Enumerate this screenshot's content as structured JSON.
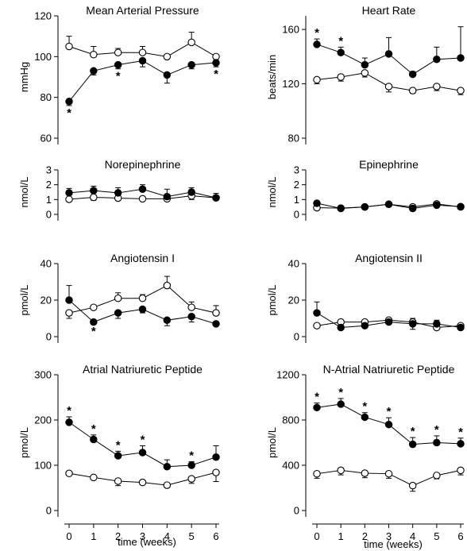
{
  "x_axis_label": "time (weeks)",
  "chart_data": [
    {
      "type": "line",
      "title": "Mean Arterial Pressure",
      "ylabel": "mmHg",
      "ylim": [
        60,
        120
      ],
      "yticks": [
        60,
        80,
        100,
        120
      ],
      "x": [
        0,
        1,
        2,
        3,
        4,
        5,
        6
      ],
      "series": [
        {
          "marker": "open-circle",
          "values": [
            105,
            101,
            102,
            102,
            100,
            107,
            100
          ],
          "errors": [
            5,
            4,
            2,
            3,
            1,
            5,
            1
          ]
        },
        {
          "marker": "filled-circle",
          "values": [
            78,
            93,
            96,
            98,
            91,
            96,
            97
          ],
          "errors": [
            2,
            2,
            2,
            3,
            4,
            2,
            2
          ]
        }
      ],
      "significant_x": [
        0,
        2,
        6
      ]
    },
    {
      "type": "line",
      "title": "Heart Rate",
      "ylabel": "beats/min",
      "ylim": [
        80,
        170
      ],
      "yticks": [
        80,
        120,
        160
      ],
      "x": [
        0,
        1,
        2,
        3,
        4,
        5,
        6
      ],
      "series": [
        {
          "marker": "open-circle",
          "values": [
            123,
            125,
            128,
            118,
            115,
            118,
            115
          ],
          "errors": [
            3,
            3,
            3,
            4,
            2,
            3,
            3
          ]
        },
        {
          "marker": "filled-circle",
          "values": [
            149,
            143,
            134,
            142,
            127,
            138,
            139
          ],
          "errors": [
            4,
            4,
            5,
            12,
            2,
            9,
            23
          ]
        }
      ],
      "significant_x": [
        0,
        1
      ]
    },
    {
      "type": "line",
      "title": "Norepinephrine",
      "ylabel": "nmol/L",
      "ylim": [
        0,
        3
      ],
      "yticks": [
        0,
        1,
        2,
        3
      ],
      "x": [
        0,
        1,
        2,
        3,
        4,
        5,
        6
      ],
      "series": [
        {
          "marker": "open-circle",
          "values": [
            1.02,
            1.15,
            1.1,
            1.05,
            1.05,
            1.25,
            1.12
          ],
          "errors": [
            0.1,
            0.2,
            0.15,
            0.15,
            0.15,
            0.25,
            0.15
          ]
        },
        {
          "marker": "filled-circle",
          "values": [
            1.45,
            1.6,
            1.45,
            1.7,
            1.2,
            1.5,
            1.12
          ],
          "errors": [
            0.3,
            0.3,
            0.35,
            0.3,
            0.5,
            0.3,
            0.3
          ]
        }
      ],
      "significant_x": []
    },
    {
      "type": "line",
      "title": "Epinephrine",
      "ylabel": "nmol/L",
      "ylim": [
        0,
        3
      ],
      "yticks": [
        0,
        1,
        2,
        3
      ],
      "x": [
        0,
        1,
        2,
        3,
        4,
        5,
        6
      ],
      "series": [
        {
          "marker": "open-circle",
          "values": [
            0.45,
            0.42,
            0.5,
            0.68,
            0.5,
            0.7,
            0.5
          ],
          "errors": [
            0.05,
            0.05,
            0.05,
            0.05,
            0.05,
            0.05,
            0.05
          ]
        },
        {
          "marker": "filled-circle",
          "values": [
            0.75,
            0.4,
            0.5,
            0.68,
            0.4,
            0.62,
            0.52
          ],
          "errors": [
            0.1,
            0.1,
            0.1,
            0.05,
            0.1,
            0.1,
            0.1
          ]
        }
      ],
      "significant_x": []
    },
    {
      "type": "line",
      "title": "Angiotensin I",
      "ylabel": "pmol/L",
      "ylim": [
        0,
        40
      ],
      "yticks": [
        0,
        20,
        40
      ],
      "x": [
        0,
        1,
        2,
        3,
        4,
        5,
        6
      ],
      "series": [
        {
          "marker": "open-circle",
          "values": [
            13,
            16,
            21,
            21,
            28,
            16,
            13
          ],
          "errors": [
            3,
            1,
            3,
            2,
            5,
            3,
            4
          ]
        },
        {
          "marker": "filled-circle",
          "values": [
            20,
            8,
            13,
            15,
            9,
            11,
            7
          ],
          "errors": [
            8,
            1,
            3,
            2,
            3,
            3,
            1
          ]
        }
      ],
      "significant_x": [
        1
      ]
    },
    {
      "type": "line",
      "title": "Angiotensin II",
      "ylabel": "pmol/L",
      "ylim": [
        0,
        40
      ],
      "yticks": [
        0,
        20,
        40
      ],
      "x": [
        0,
        1,
        2,
        3,
        4,
        5,
        6
      ],
      "series": [
        {
          "marker": "open-circle",
          "values": [
            6,
            8,
            8,
            9,
            8,
            5,
            6
          ],
          "errors": [
            1,
            1,
            1,
            1,
            2,
            1,
            1
          ]
        },
        {
          "marker": "filled-circle",
          "values": [
            13,
            5,
            6,
            8,
            7,
            7,
            5
          ],
          "errors": [
            6,
            1,
            1,
            1,
            3,
            2,
            1
          ]
        }
      ],
      "significant_x": []
    },
    {
      "type": "line",
      "title": "Atrial Natriuretic Peptide",
      "ylabel": "pmol/L",
      "ylim": [
        0,
        300
      ],
      "yticks": [
        0,
        100,
        200,
        300
      ],
      "x": [
        0,
        1,
        2,
        3,
        4,
        5,
        6
      ],
      "series": [
        {
          "marker": "open-circle",
          "values": [
            82,
            73,
            65,
            62,
            56,
            70,
            84
          ],
          "errors": [
            5,
            5,
            10,
            5,
            5,
            10,
            20
          ]
        },
        {
          "marker": "filled-circle",
          "values": [
            195,
            157,
            121,
            128,
            97,
            100,
            118
          ],
          "errors": [
            12,
            10,
            10,
            15,
            15,
            8,
            25
          ]
        }
      ],
      "significant_x": [
        0,
        1,
        2,
        3,
        5
      ]
    },
    {
      "type": "line",
      "title": "N-Atrial Natriuretic Peptide",
      "ylabel": "pmol/L",
      "ylim": [
        0,
        1200
      ],
      "yticks": [
        0,
        400,
        800,
        1200
      ],
      "x": [
        0,
        1,
        2,
        3,
        4,
        5,
        6
      ],
      "series": [
        {
          "marker": "open-circle",
          "values": [
            325,
            355,
            330,
            325,
            220,
            310,
            355
          ],
          "errors": [
            40,
            40,
            40,
            40,
            50,
            30,
            40
          ]
        },
        {
          "marker": "filled-circle",
          "values": [
            910,
            940,
            825,
            760,
            585,
            600,
            590
          ],
          "errors": [
            40,
            50,
            40,
            60,
            60,
            60,
            50
          ]
        }
      ],
      "significant_x": [
        0,
        1,
        2,
        3,
        4,
        5,
        6
      ]
    }
  ]
}
